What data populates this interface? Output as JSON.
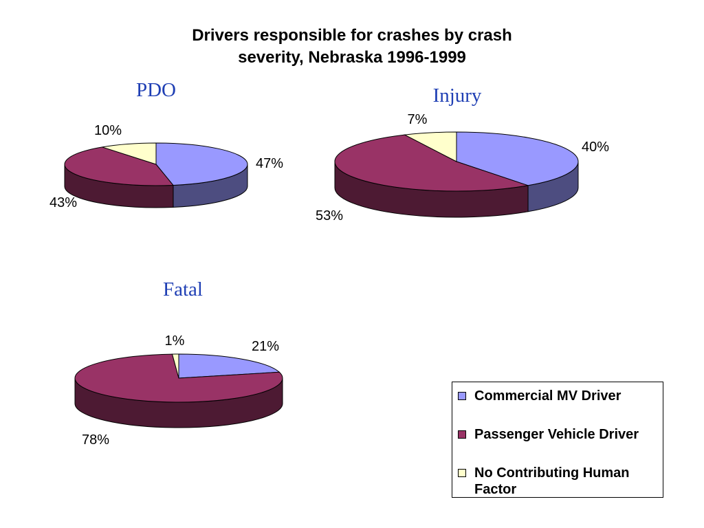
{
  "title": {
    "line1": "Drivers responsible for crashes by crash",
    "line2": "severity, Nebraska 1996-1999"
  },
  "colors": {
    "commercial": "#9999ff",
    "passenger": "#993366",
    "no_factor": "#ffffcc"
  },
  "legend": [
    {
      "key": "commercial",
      "label": "Commercial MV Driver"
    },
    {
      "key": "passenger",
      "label": "Passenger Vehicle Driver"
    },
    {
      "key": "no_factor",
      "label": "No Contributing Human Factor"
    }
  ],
  "chart_data": [
    {
      "type": "pie",
      "title": "PDO",
      "categories": [
        "Commercial MV Driver",
        "Passenger Vehicle Driver",
        "No Contributing Human Factor"
      ],
      "values": [
        47,
        43,
        10
      ],
      "labels": [
        "47%",
        "43%",
        "10%"
      ]
    },
    {
      "type": "pie",
      "title": "Injury",
      "categories": [
        "Commercial MV Driver",
        "Passenger Vehicle Driver",
        "No Contributing Human Factor"
      ],
      "values": [
        40,
        53,
        7
      ],
      "labels": [
        "40%",
        "53%",
        "7%"
      ]
    },
    {
      "type": "pie",
      "title": "Fatal",
      "categories": [
        "Commercial MV Driver",
        "Passenger Vehicle Driver",
        "No Contributing Human Factor"
      ],
      "values": [
        21,
        78,
        1
      ],
      "labels": [
        "21%",
        "78%",
        "1%"
      ]
    }
  ]
}
